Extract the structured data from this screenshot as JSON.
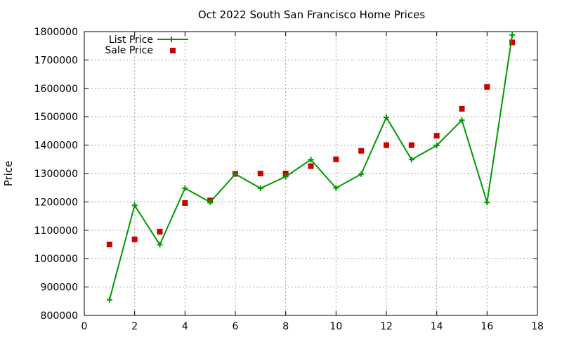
{
  "chart_data": {
    "type": "line",
    "title": "Oct 2022 South San Francisco Home Prices",
    "xlabel": "",
    "ylabel": "Price",
    "xlim": [
      0,
      18
    ],
    "ylim": [
      800000,
      1800000
    ],
    "xticks": [
      0,
      2,
      4,
      6,
      8,
      10,
      12,
      14,
      16,
      18
    ],
    "yticks": [
      800000,
      900000,
      1000000,
      1100000,
      1200000,
      1300000,
      1400000,
      1500000,
      1600000,
      1700000,
      1800000
    ],
    "grid": true,
    "legend_position": "top-left",
    "x": [
      1,
      2,
      3,
      4,
      5,
      6,
      7,
      8,
      9,
      10,
      11,
      12,
      13,
      14,
      15,
      16,
      17
    ],
    "series": [
      {
        "name": "List Price",
        "style": "line-with-plus-markers",
        "color": "#009900",
        "values": [
          855000,
          1188000,
          1049000,
          1248000,
          1199000,
          1298000,
          1248000,
          1289000,
          1349000,
          1249000,
          1298000,
          1498000,
          1349000,
          1399000,
          1488000,
          1198000,
          1788000
        ]
      },
      {
        "name": "Sale Price",
        "style": "square-markers",
        "color": "#cc0000",
        "values": [
          1050000,
          1068000,
          1095000,
          1196000,
          1205000,
          1299000,
          1300000,
          1300000,
          1326000,
          1350000,
          1380000,
          1400000,
          1400000,
          1433000,
          1528000,
          1605000,
          1762000
        ]
      }
    ]
  }
}
